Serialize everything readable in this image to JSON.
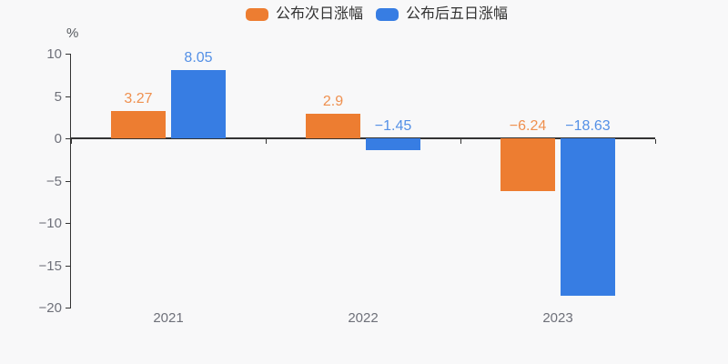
{
  "background": "#f8f8f9",
  "legend": {
    "items": [
      {
        "label": "公布次日涨幅",
        "color": "#ED7D31"
      },
      {
        "label": "公布后五日涨幅",
        "color": "#377DE3"
      }
    ]
  },
  "axis": {
    "unit_label": "%",
    "text_color": "#6E7079",
    "line_color": "#333333"
  },
  "chart_data": {
    "type": "bar",
    "title": "",
    "categories": [
      "2021",
      "2022",
      "2023"
    ],
    "series": [
      {
        "name": "公布次日涨幅",
        "values": [
          3.27,
          2.9,
          -6.24
        ],
        "color": "#ED7D31",
        "label_color": "#EF904F"
      },
      {
        "name": "公布后五日涨幅",
        "values": [
          8.05,
          -1.45,
          -18.63
        ],
        "color": "#377DE3",
        "label_color": "#5490E6"
      }
    ],
    "xlabel": "",
    "ylabel": "%",
    "ylim": [
      -20,
      10
    ],
    "yticks": [
      10,
      5,
      0,
      -5,
      -10,
      -15,
      -20
    ],
    "grid": false,
    "legend_position": "top-center",
    "value_labels": true,
    "axis_on_zero": true
  }
}
